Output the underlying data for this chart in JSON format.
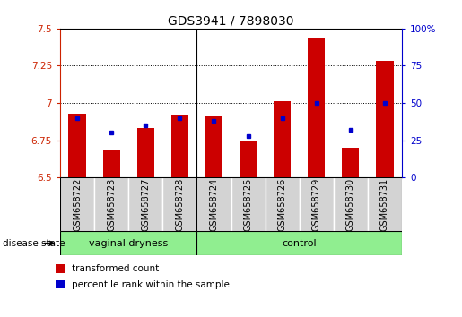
{
  "title": "GDS3941 / 7898030",
  "samples": [
    "GSM658722",
    "GSM658723",
    "GSM658727",
    "GSM658728",
    "GSM658724",
    "GSM658725",
    "GSM658726",
    "GSM658729",
    "GSM658730",
    "GSM658731"
  ],
  "transformed_counts": [
    6.93,
    6.68,
    6.83,
    6.92,
    6.91,
    6.75,
    7.01,
    7.44,
    6.7,
    7.28
  ],
  "percentile_ranks": [
    40,
    30,
    35,
    40,
    38,
    28,
    40,
    50,
    32,
    50
  ],
  "ylim_left": [
    6.5,
    7.5
  ],
  "ylim_right": [
    0,
    100
  ],
  "yticks_left": [
    6.5,
    6.75,
    7.0,
    7.25,
    7.5
  ],
  "ytick_labels_left": [
    "6.5",
    "6.75",
    "7",
    "7.25",
    "7.5"
  ],
  "yticks_right": [
    0,
    25,
    50,
    75,
    100
  ],
  "ytick_labels_right": [
    "0",
    "25",
    "50",
    "75",
    "100%"
  ],
  "group1_label": "vaginal dryness",
  "group2_label": "control",
  "group1_count": 4,
  "group2_count": 6,
  "disease_state_label": "disease state",
  "bar_color": "#cc0000",
  "dot_color": "#0000cc",
  "bar_width": 0.5,
  "legend_items": [
    {
      "label": "transformed count",
      "color": "#cc0000"
    },
    {
      "label": "percentile rank within the sample",
      "color": "#0000cc"
    }
  ],
  "group_bg_color": "#90ee90",
  "sample_bg_color": "#d3d3d3",
  "title_fontsize": 10,
  "tick_fontsize": 7.5,
  "label_fontsize": 7,
  "group_fontsize": 8,
  "legend_fontsize": 7.5
}
